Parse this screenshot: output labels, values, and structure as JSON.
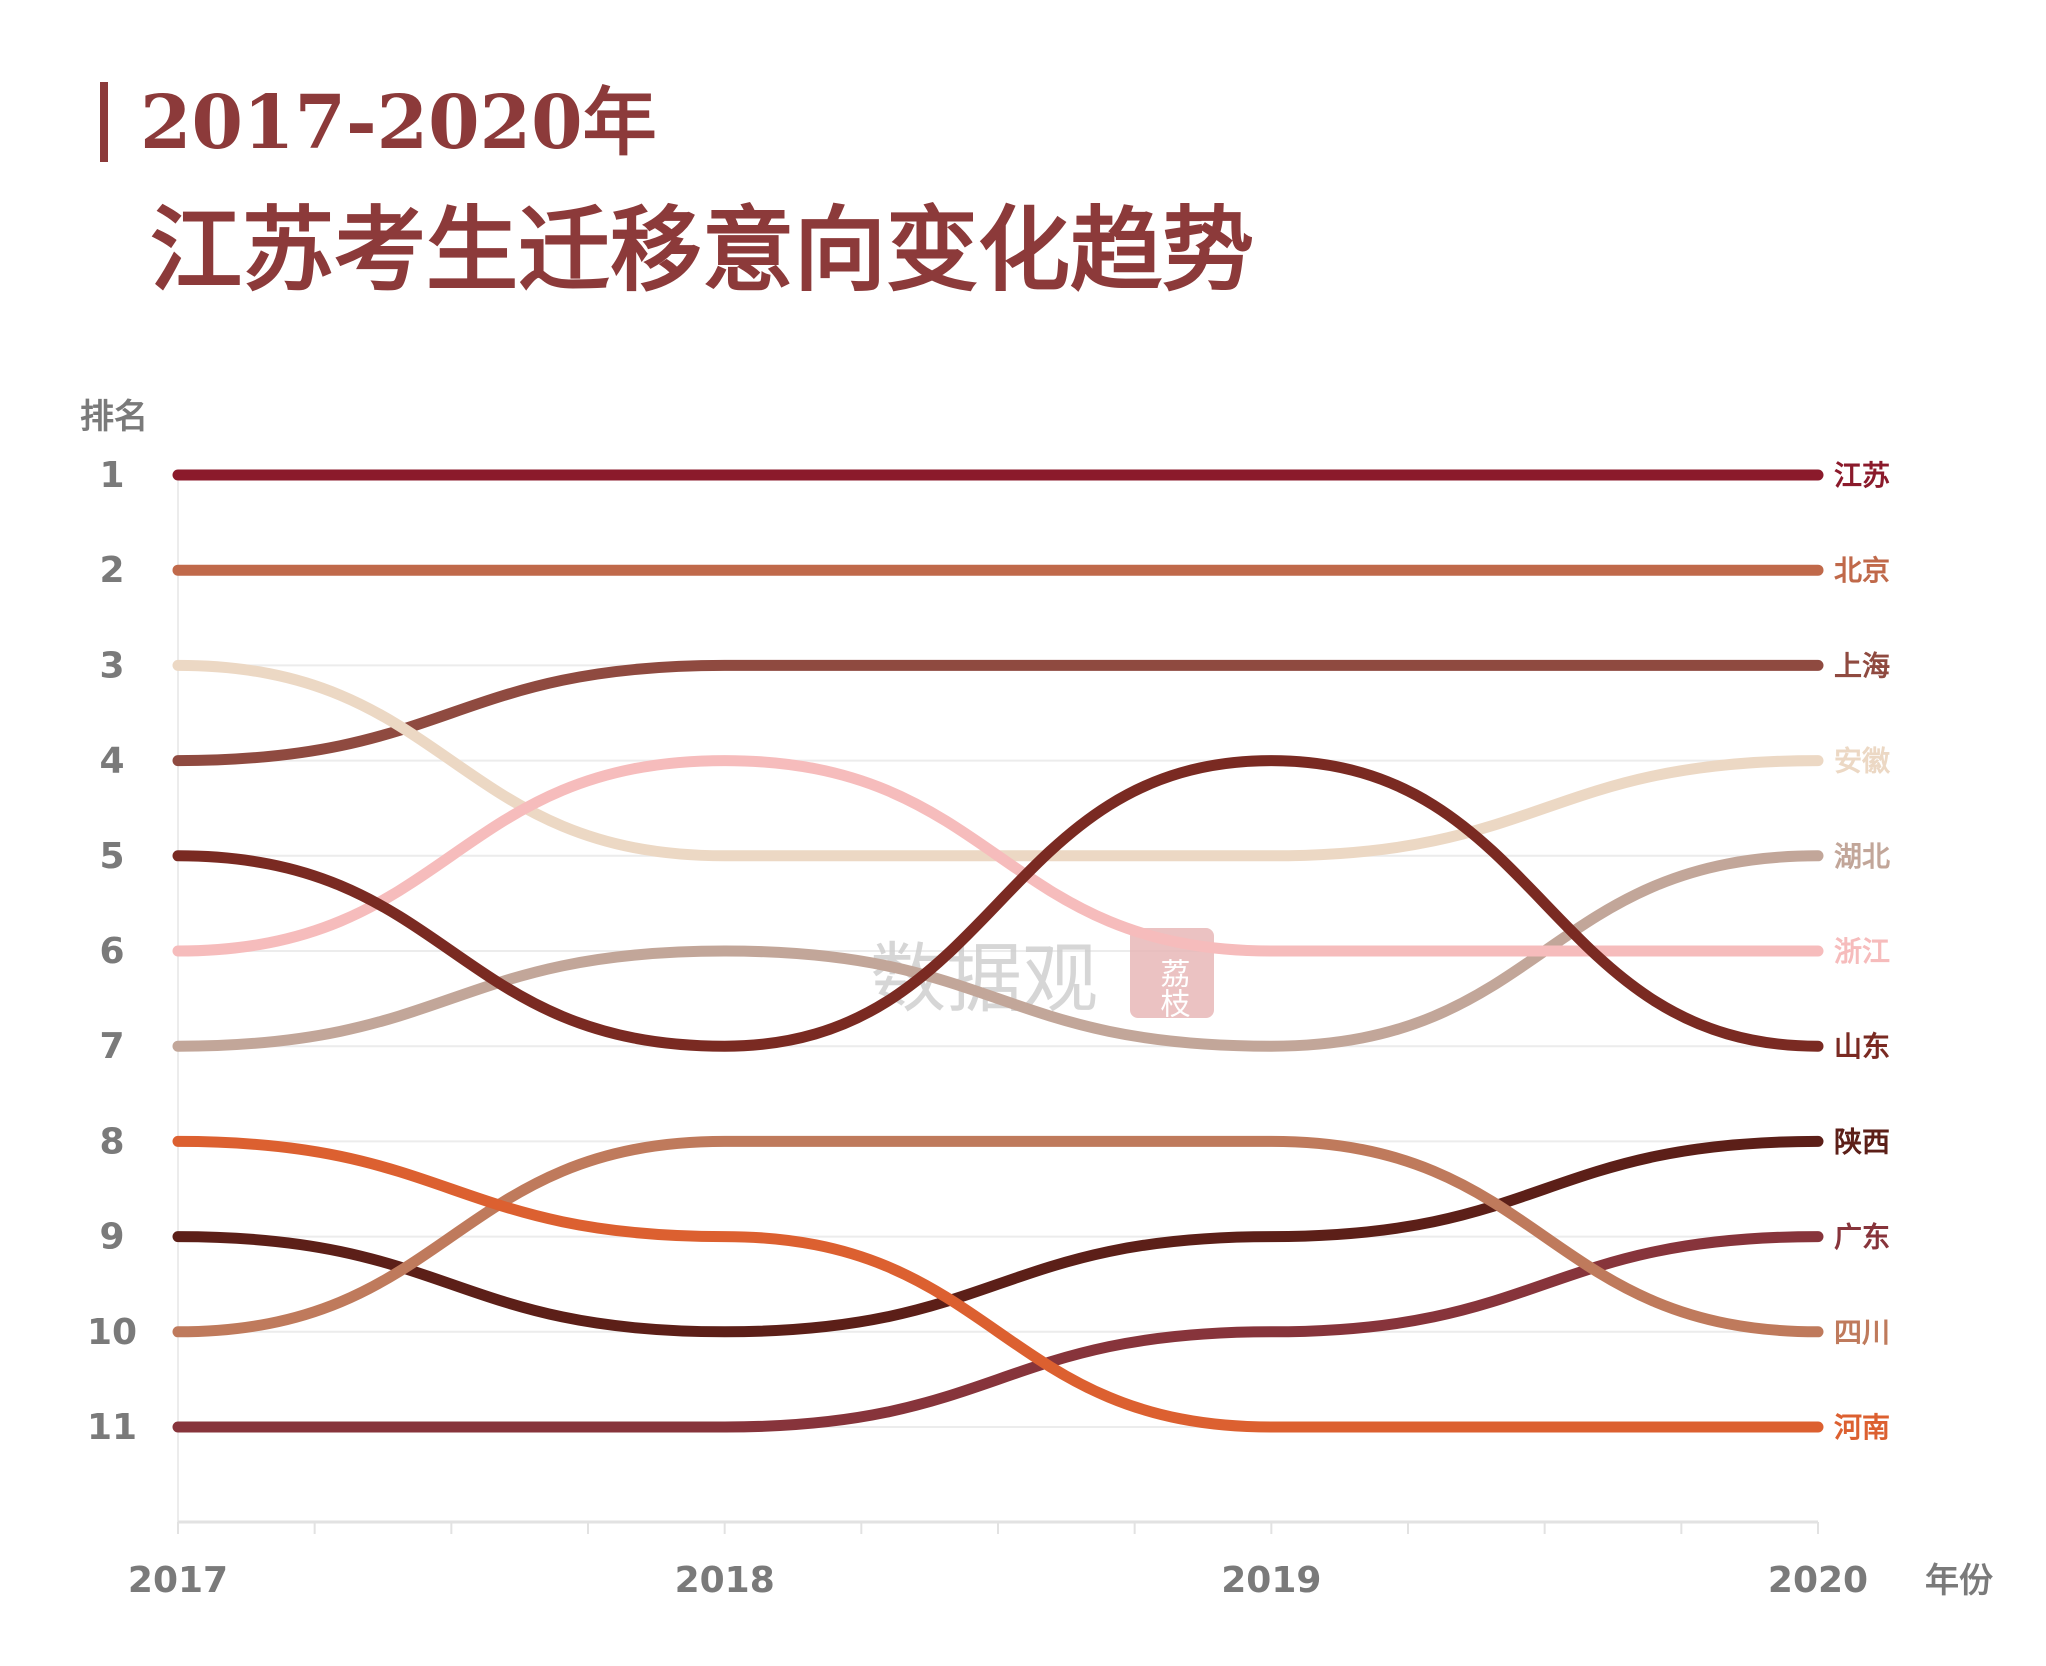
{
  "colors": {
    "title": "#8c3a3a",
    "axis_text": "#7a7a7a",
    "grid": "#ececec",
    "watermark": "#cfcfcf",
    "watermark_badge": "#e8b8b8"
  },
  "watermark": {
    "text": "数据观",
    "badge": "荔枝"
  },
  "chart_data": {
    "type": "line",
    "title": "2017-2020年",
    "subtitle": "江苏考生迁移意向变化趋势",
    "ylabel": "排名",
    "xlabel": "年份",
    "y_inverted": true,
    "ylim": [
      1,
      11
    ],
    "y_ticks": [
      1,
      2,
      3,
      4,
      5,
      6,
      7,
      8,
      9,
      10,
      11
    ],
    "x": [
      "2017",
      "2018",
      "2019",
      "2020"
    ],
    "grid": true,
    "series": [
      {
        "name": "江苏",
        "color": "#8b1a2b",
        "values": [
          1,
          1,
          1,
          1
        ]
      },
      {
        "name": "北京",
        "color": "#c0694a",
        "values": [
          2,
          2,
          2,
          2
        ]
      },
      {
        "name": "上海",
        "color": "#8f4a40",
        "values": [
          4,
          3,
          3,
          3
        ]
      },
      {
        "name": "安徽",
        "color": "#ecd8c4",
        "values": [
          3,
          5,
          5,
          4
        ]
      },
      {
        "name": "湖北",
        "color": "#c2a699",
        "values": [
          7,
          6,
          7,
          5
        ]
      },
      {
        "name": "浙江",
        "color": "#f6bcbc",
        "values": [
          6,
          4,
          6,
          6
        ]
      },
      {
        "name": "山东",
        "color": "#7a2a22",
        "values": [
          5,
          7,
          4,
          7
        ]
      },
      {
        "name": "陕西",
        "color": "#5c1f18",
        "values": [
          9,
          10,
          9,
          8
        ]
      },
      {
        "name": "广东",
        "color": "#87343b",
        "values": [
          11,
          11,
          10,
          9
        ]
      },
      {
        "name": "四川",
        "color": "#bf7a5c",
        "values": [
          10,
          8,
          8,
          10
        ]
      },
      {
        "name": "河南",
        "color": "#dc6030",
        "values": [
          8,
          9,
          11,
          11
        ]
      }
    ]
  }
}
